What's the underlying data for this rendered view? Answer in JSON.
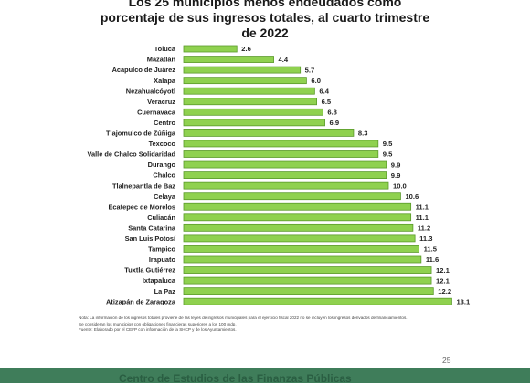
{
  "page": {
    "page_number": "25",
    "footer_text": "Centro de Estudios de las Finanzas Públicas"
  },
  "notes": {
    "note1": "Nota: La información de los ingresos totales proviene de las leyes de ingresos municipales para el ejercicio fiscal 2022 no se incluyen los ingresos derivados de financiamientos.",
    "note2": "Se consideran los municipios con obligaciones financieras superiores a los 100 mdp.",
    "source": "Fuente: Elaborado por el CEFP con información de la SHCP y de los Ayuntamientos."
  },
  "colors": {
    "bar": "#8fd14f",
    "bar_edge": "#5a9a2a",
    "footer": "#3f7d5a"
  },
  "chart_data": {
    "type": "bar",
    "orientation": "horizontal",
    "title_lines": [
      "Los 25 municipios menos endeudados como",
      "porcentaje de sus ingresos totales, al cuarto trimestre",
      "de 2022"
    ],
    "xlabel": "",
    "ylabel": "",
    "grid": false,
    "legend": "none",
    "categories": [
      "Toluca",
      "Mazatlán",
      "Acapulco de Juárez",
      "Xalapa",
      "Nezahualcóyotl",
      "Veracruz",
      "Cuernavaca",
      "Centro",
      "Tlajomulco de Zúñiga",
      "Texcoco",
      "Valle de Chalco Solidaridad",
      "Durango",
      "Chalco",
      "Tlalnepantla de Baz",
      "Celaya",
      "Ecatepec de Morelos",
      "Culiacán",
      "Santa Catarina",
      "San Luis Potosí",
      "Tampico",
      "Irapuato",
      "Tuxtla Gutiérrez",
      "Ixtapaluca",
      "La Paz",
      "Atizapán de Zaragoza"
    ],
    "values": [
      2.6,
      4.4,
      5.7,
      6.0,
      6.4,
      6.5,
      6.8,
      6.9,
      8.3,
      9.5,
      9.5,
      9.9,
      9.9,
      10.0,
      10.6,
      11.1,
      11.1,
      11.2,
      11.3,
      11.5,
      11.6,
      12.1,
      12.1,
      12.2,
      13.1
    ],
    "value_labels": [
      "2.6",
      "4.4",
      "5.7",
      "6.0",
      "6.4",
      "6.5",
      "6.8",
      "6.9",
      "8.3",
      "9.5",
      "9.5",
      "9.9",
      "9.9",
      "10.0",
      "10.6",
      "11.1",
      "11.1",
      "11.2",
      "11.3",
      "11.5",
      "11.6",
      "12.1",
      "12.1",
      "12.2",
      "13.1"
    ]
  }
}
